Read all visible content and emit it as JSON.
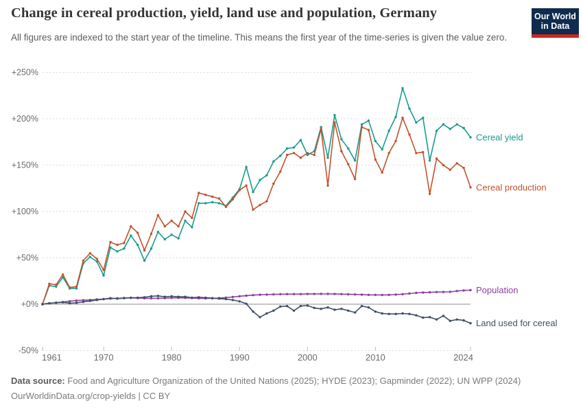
{
  "header": {
    "title": "Change in cereal production, yield, land use and population, Germany",
    "subtitle": "All figures are indexed to the start year of the timeline. This means the first year of the time-series is given the value zero.",
    "logo": {
      "line1": "Our World",
      "line2": "in Data",
      "bg_color": "#0f2b4d",
      "accent_color": "#cd271e"
    }
  },
  "chart_data": {
    "type": "line",
    "title": "Change in cereal production, yield, land use and population, Germany",
    "xlabel": "",
    "ylabel": "",
    "unit": "% change relative to 1961",
    "grid": "horizontal-dashed",
    "zero_line": true,
    "legend_position": "end-of-line labels, right",
    "ylim": [
      -50,
      250
    ],
    "years": [
      1961,
      1962,
      1963,
      1964,
      1965,
      1966,
      1967,
      1968,
      1969,
      1970,
      1971,
      1972,
      1973,
      1974,
      1975,
      1976,
      1977,
      1978,
      1979,
      1980,
      1981,
      1982,
      1983,
      1984,
      1985,
      1986,
      1987,
      1988,
      1989,
      1990,
      1991,
      1992,
      1993,
      1994,
      1995,
      1996,
      1997,
      1998,
      1999,
      2000,
      2001,
      2002,
      2003,
      2004,
      2005,
      2006,
      2007,
      2008,
      2009,
      2010,
      2011,
      2012,
      2013,
      2014,
      2015,
      2016,
      2017,
      2018,
      2019,
      2020,
      2021,
      2022,
      2023,
      2024
    ],
    "yticks": [
      {
        "value": 250,
        "label": "+250%"
      },
      {
        "value": 200,
        "label": "+200%"
      },
      {
        "value": 150,
        "label": "+150%"
      },
      {
        "value": 100,
        "label": "+100%"
      },
      {
        "value": 50,
        "label": "+50%"
      },
      {
        "value": 0,
        "label": "+0%"
      },
      {
        "value": -50,
        "label": "-50%"
      }
    ],
    "xticks": [
      {
        "value": 1961,
        "label": "1961",
        "align": "start"
      },
      {
        "value": 1970,
        "label": "1970",
        "align": "middle"
      },
      {
        "value": 1980,
        "label": "1980",
        "align": "middle"
      },
      {
        "value": 1990,
        "label": "1990",
        "align": "middle"
      },
      {
        "value": 2000,
        "label": "2000",
        "align": "middle"
      },
      {
        "value": 2010,
        "label": "2010",
        "align": "middle"
      },
      {
        "value": 2024,
        "label": "2024",
        "align": "end"
      }
    ],
    "series": [
      {
        "name": "Cereal yield",
        "color": "#1a9b8c",
        "values": [
          0,
          20,
          19,
          29,
          17,
          17,
          44,
          51,
          46,
          31,
          61,
          57,
          60,
          74,
          64,
          47,
          60,
          78,
          70,
          75,
          71,
          90,
          83,
          109,
          109,
          110,
          109,
          106,
          115,
          124,
          148,
          121,
          134,
          139,
          154,
          160,
          168,
          169,
          177,
          161,
          165,
          191,
          158,
          204,
          178,
          168,
          155,
          194,
          198,
          176,
          167,
          187,
          202,
          233,
          211,
          196,
          201,
          155,
          187,
          194,
          189,
          194,
          190,
          180
        ]
      },
      {
        "name": "Cereal production",
        "color": "#c1522b",
        "values": [
          0,
          22,
          21,
          32,
          18,
          19,
          47,
          55,
          49,
          37,
          67,
          64,
          66,
          84,
          77,
          58,
          76,
          96,
          84,
          90,
          84,
          100,
          93,
          120,
          118,
          116,
          114,
          105,
          113,
          123,
          128,
          102,
          107,
          111,
          130,
          143,
          161,
          163,
          158,
          163,
          161,
          189,
          128,
          196,
          165,
          151,
          135,
          191,
          188,
          156,
          142,
          163,
          176,
          201,
          183,
          163,
          164,
          119,
          157,
          150,
          145,
          152,
          147,
          126
        ]
      },
      {
        "name": "Population",
        "color": "#8c3fa0",
        "values": [
          0,
          0.9,
          1.7,
          2.4,
          3.2,
          3.9,
          4.3,
          4.6,
          5.1,
          5.5,
          6,
          6.4,
          6.7,
          6.8,
          6.6,
          6.4,
          6.4,
          6.4,
          6.5,
          6.8,
          6.9,
          6.8,
          6.6,
          6.3,
          6.2,
          6.3,
          6.6,
          7.1,
          7.8,
          8.6,
          9.2,
          9.8,
          10.2,
          10.4,
          10.6,
          10.8,
          10.9,
          10.9,
          10.9,
          11,
          11,
          11.1,
          11.1,
          11,
          10.9,
          10.7,
          10.5,
          10.3,
          10.1,
          10,
          9.9,
          10.1,
          10.4,
          10.8,
          11.5,
          12.2,
          12.5,
          12.8,
          13.1,
          13.2,
          13.3,
          14.2,
          14.8,
          15.2
        ]
      },
      {
        "name": "Land used for cereal",
        "color": "#3e4e64",
        "values": [
          0,
          1,
          1.5,
          2,
          1,
          1.5,
          2.5,
          3.5,
          4.5,
          5.5,
          6.5,
          6,
          6.5,
          7,
          7,
          7.5,
          8.5,
          9,
          8,
          8.5,
          8,
          8,
          7,
          7.5,
          7,
          6.5,
          6,
          5.5,
          4.5,
          3,
          0.5,
          -8,
          -14,
          -10,
          -7,
          -2.5,
          -2,
          -7,
          -2,
          -1.5,
          -4,
          -5,
          -3.5,
          -6,
          -5,
          -7,
          -9,
          -2,
          -3.5,
          -8,
          -10,
          -10.5,
          -10.5,
          -10,
          -10.5,
          -12,
          -14.5,
          -14,
          -16.5,
          -12.5,
          -18,
          -16.5,
          -17.5,
          -20.5
        ]
      }
    ]
  },
  "footer": {
    "source_label": "Data source:",
    "source_text": "Food and Agriculture Organization of the United Nations (2025); HYDE (2023); Gapminder (2022); UN WPP (2024)",
    "link_text": "OurWorldinData.org/crop-yields | CC BY"
  }
}
